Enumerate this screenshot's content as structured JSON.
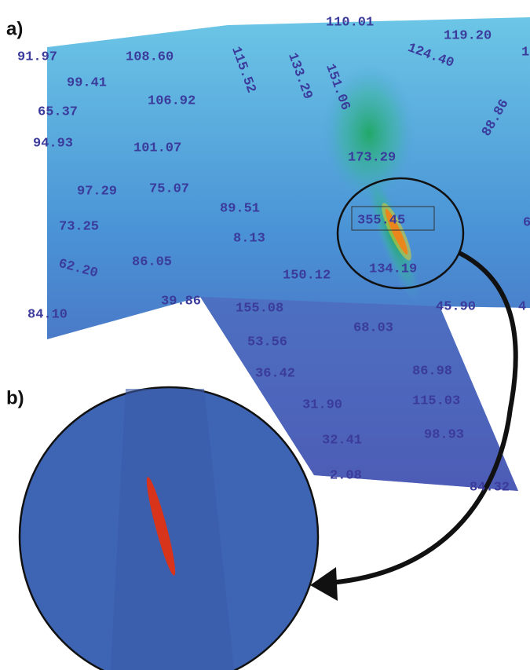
{
  "panels": [
    {
      "label": "a)",
      "values": [
        "91.97",
        "108.60",
        "115.52",
        "133.29",
        "151.06",
        "110.01",
        "119.20",
        "124.40",
        "1",
        "99.41",
        "65.37",
        "106.92",
        "88.86",
        "94.93",
        "101.07",
        "173.29",
        "97.29",
        "75.07",
        "89.51",
        "355.45",
        "6",
        "73.25",
        "8.13",
        "62.20",
        "86.05",
        "150.12",
        "134.19",
        "84.10",
        "39.86",
        "155.08",
        "45.90",
        "4",
        "68.03",
        "53.56",
        "86.98",
        "36.42",
        "115.03",
        "31.90",
        "98.93",
        "32.41",
        "2.08",
        "84.32"
      ]
    },
    {
      "label": "b)"
    }
  ]
}
